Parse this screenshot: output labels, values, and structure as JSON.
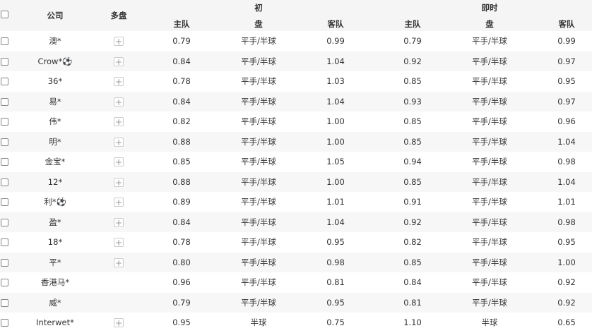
{
  "header": {
    "company": "公司",
    "multi": "多盘",
    "initial": "初",
    "live": "即时",
    "home": "主队",
    "line": "盘",
    "away": "客队"
  },
  "rows": [
    {
      "company": "澳*",
      "multi": true,
      "i_home": "0.79",
      "i_line": "平手/半球",
      "i_away": "0.99",
      "l_home": "0.79",
      "l_line": "平手/半球",
      "l_away": "0.99"
    },
    {
      "company": "Crow*⚽",
      "multi": true,
      "i_home": "0.84",
      "i_line": "平手/半球",
      "i_away": "1.04",
      "l_home": "0.92",
      "l_line": "平手/半球",
      "l_away": "0.97"
    },
    {
      "company": "36*",
      "multi": true,
      "i_home": "0.78",
      "i_line": "平手/半球",
      "i_away": "1.03",
      "l_home": "0.85",
      "l_line": "平手/半球",
      "l_away": "0.95"
    },
    {
      "company": "易*",
      "multi": true,
      "i_home": "0.84",
      "i_line": "平手/半球",
      "i_away": "1.04",
      "l_home": "0.93",
      "l_line": "平手/半球",
      "l_away": "0.97"
    },
    {
      "company": "伟*",
      "multi": true,
      "i_home": "0.82",
      "i_line": "平手/半球",
      "i_away": "1.00",
      "l_home": "0.85",
      "l_line": "平手/半球",
      "l_away": "0.96"
    },
    {
      "company": "明*",
      "multi": true,
      "i_home": "0.88",
      "i_line": "平手/半球",
      "i_away": "1.00",
      "l_home": "0.85",
      "l_line": "平手/半球",
      "l_away": "1.04"
    },
    {
      "company": "金宝*",
      "multi": true,
      "i_home": "0.85",
      "i_line": "平手/半球",
      "i_away": "1.05",
      "l_home": "0.94",
      "l_line": "平手/半球",
      "l_away": "0.98"
    },
    {
      "company": "12*",
      "multi": true,
      "i_home": "0.88",
      "i_line": "平手/半球",
      "i_away": "1.00",
      "l_home": "0.85",
      "l_line": "平手/半球",
      "l_away": "1.04"
    },
    {
      "company": "利*⚽",
      "multi": true,
      "i_home": "0.89",
      "i_line": "平手/半球",
      "i_away": "1.01",
      "l_home": "0.91",
      "l_line": "平手/半球",
      "l_away": "1.01"
    },
    {
      "company": "盈*",
      "multi": true,
      "i_home": "0.84",
      "i_line": "平手/半球",
      "i_away": "1.04",
      "l_home": "0.92",
      "l_line": "平手/半球",
      "l_away": "0.98"
    },
    {
      "company": "18*",
      "multi": true,
      "i_home": "0.78",
      "i_line": "平手/半球",
      "i_away": "0.95",
      "l_home": "0.82",
      "l_line": "平手/半球",
      "l_away": "0.95"
    },
    {
      "company": "平*",
      "multi": true,
      "i_home": "0.80",
      "i_line": "平手/半球",
      "i_away": "0.98",
      "l_home": "0.85",
      "l_line": "平手/半球",
      "l_away": "1.00"
    },
    {
      "company": "香港马*",
      "multi": false,
      "i_home": "0.96",
      "i_line": "平手/半球",
      "i_away": "0.81",
      "l_home": "0.84",
      "l_line": "平手/半球",
      "l_away": "0.92"
    },
    {
      "company": "威*",
      "multi": false,
      "i_home": "0.79",
      "i_line": "平手/半球",
      "i_away": "0.95",
      "l_home": "0.81",
      "l_line": "平手/半球",
      "l_away": "0.92"
    },
    {
      "company": "Interwet*",
      "multi": true,
      "i_home": "0.95",
      "i_line": "半球",
      "i_away": "0.75",
      "l_home": "1.10",
      "l_line": "半球",
      "l_away": "0.65"
    }
  ],
  "plus_icon": "+"
}
